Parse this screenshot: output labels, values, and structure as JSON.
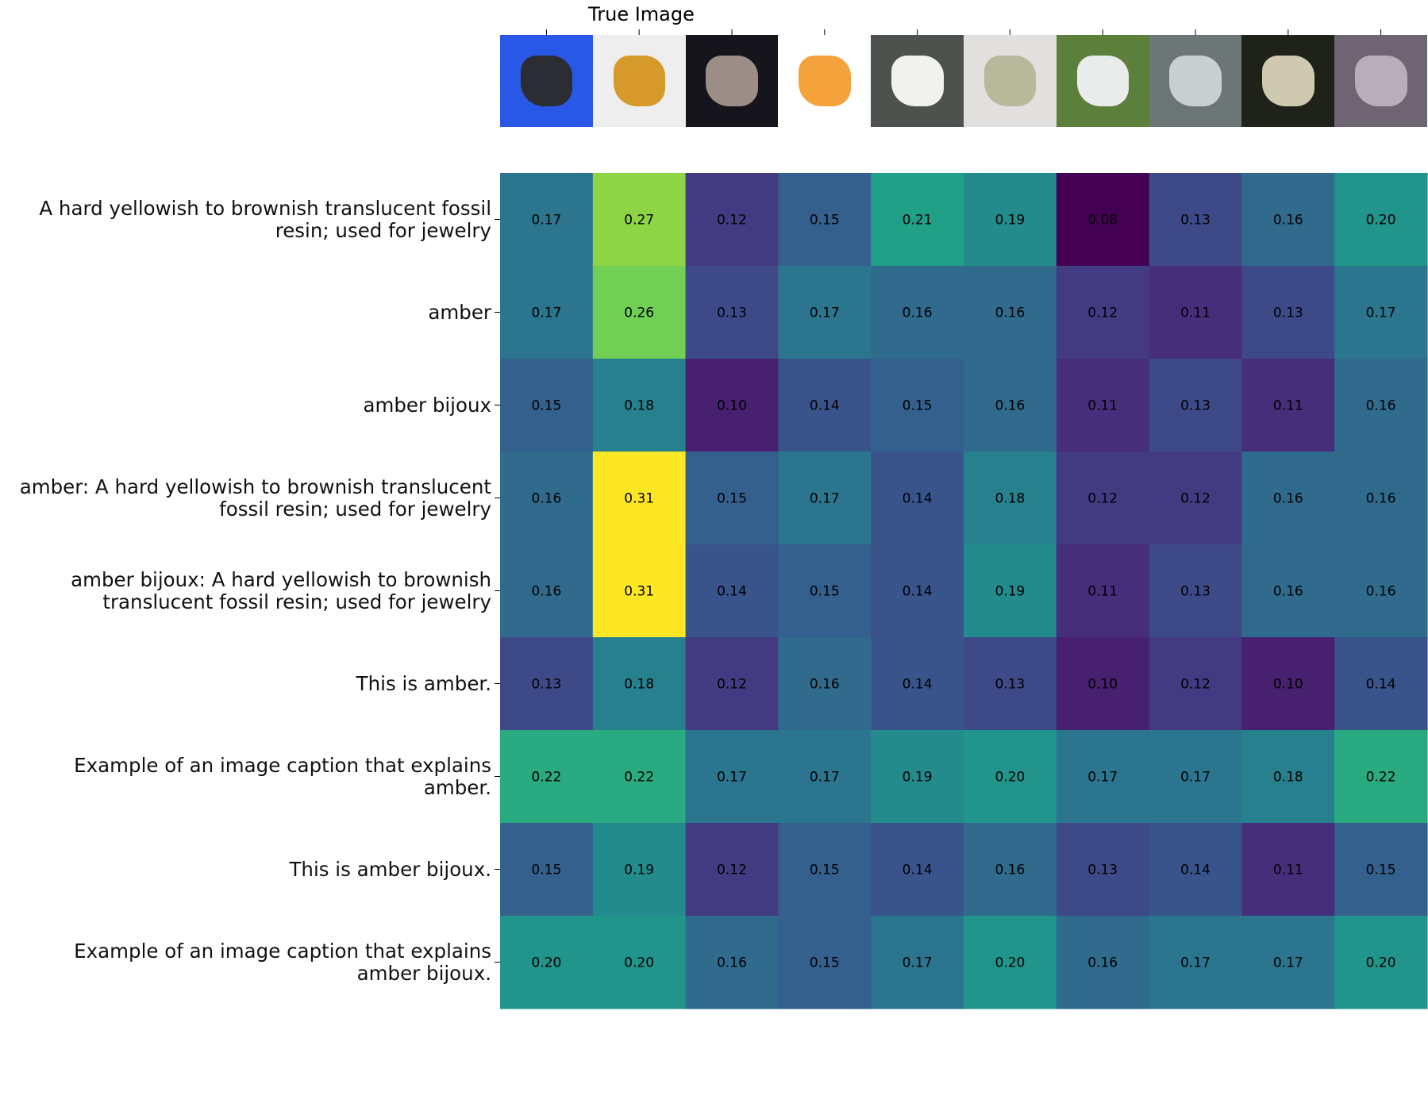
{
  "chart_data": {
    "type": "heatmap",
    "title": "True Image",
    "x_thumbnails": [
      {
        "icon": "coal-lump-photo",
        "colors": [
          "#2a58e6",
          "#2b2d33"
        ]
      },
      {
        "icon": "amber-stone-photo",
        "colors": [
          "#eeeeee",
          "#d59a2a"
        ]
      },
      {
        "icon": "hanging-fish-photo",
        "colors": [
          "#15151b",
          "#9c8e86"
        ]
      },
      {
        "icon": "apricot-halves-photo",
        "colors": [
          "#ffffff",
          "#f4a23c"
        ]
      },
      {
        "icon": "white-powder-dish-photo",
        "colors": [
          "#4d524e",
          "#f1f1ee"
        ]
      },
      {
        "icon": "jade-stones-photo",
        "colors": [
          "#e2e0df",
          "#b8b89a"
        ]
      },
      {
        "icon": "steam-geyser-park-photo",
        "colors": [
          "#5d7f3c",
          "#e9ecea"
        ]
      },
      {
        "icon": "diamond-plate-metal-photo",
        "colors": [
          "#6d7677",
          "#c9cfd0"
        ]
      },
      {
        "icon": "carved-stone-tablet-photo",
        "colors": [
          "#1f2219",
          "#cfc9b0"
        ]
      },
      {
        "icon": "grey-rocks-photo",
        "colors": [
          "#6e6573",
          "#b6aeb9"
        ]
      }
    ],
    "rows": [
      [
        "A hard yellowish to brownish translucent fossil",
        "resin; used for jewelry"
      ],
      [
        "amber"
      ],
      [
        "amber bijoux"
      ],
      [
        "amber: A hard yellowish to brownish translucent",
        "fossil resin; used for jewelry"
      ],
      [
        "amber bijoux: A hard yellowish to brownish",
        "translucent fossil resin; used for jewelry"
      ],
      [
        "This is amber."
      ],
      [
        "Example of an image caption that explains",
        "amber."
      ],
      [
        "This is amber bijoux."
      ],
      [
        "Example of an image caption that explains",
        "amber bijoux."
      ]
    ],
    "values": [
      [
        0.17,
        0.27,
        0.12,
        0.15,
        0.21,
        0.19,
        0.08,
        0.13,
        0.16,
        0.2
      ],
      [
        0.17,
        0.26,
        0.13,
        0.17,
        0.16,
        0.16,
        0.12,
        0.11,
        0.13,
        0.17
      ],
      [
        0.15,
        0.18,
        0.1,
        0.14,
        0.15,
        0.16,
        0.11,
        0.13,
        0.11,
        0.16
      ],
      [
        0.16,
        0.31,
        0.15,
        0.17,
        0.14,
        0.18,
        0.12,
        0.12,
        0.16,
        0.16
      ],
      [
        0.16,
        0.31,
        0.14,
        0.15,
        0.14,
        0.19,
        0.11,
        0.13,
        0.16,
        0.16
      ],
      [
        0.13,
        0.18,
        0.12,
        0.16,
        0.14,
        0.13,
        0.1,
        0.12,
        0.1,
        0.14
      ],
      [
        0.22,
        0.22,
        0.17,
        0.17,
        0.19,
        0.2,
        0.17,
        0.17,
        0.18,
        0.22
      ],
      [
        0.15,
        0.19,
        0.12,
        0.15,
        0.14,
        0.16,
        0.13,
        0.14,
        0.11,
        0.15
      ],
      [
        0.2,
        0.2,
        0.16,
        0.15,
        0.17,
        0.2,
        0.16,
        0.17,
        0.17,
        0.2
      ]
    ],
    "colormap": "viridis",
    "vmin": 0.08,
    "vmax": 0.31,
    "grid": false,
    "legend": "none"
  }
}
